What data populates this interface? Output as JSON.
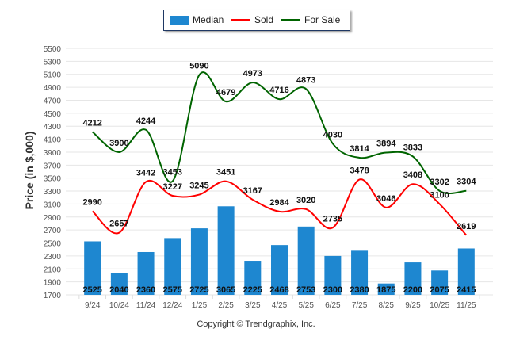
{
  "chart_data": {
    "type": "bar",
    "title": "",
    "xlabel": "",
    "ylabel": "Price (in $,000)",
    "ylim": [
      1700,
      5500
    ],
    "ytick_step": 200,
    "grid": true,
    "legend_position": "top-center",
    "categories": [
      "9/24",
      "10/24",
      "11/24",
      "12/24",
      "1/25",
      "2/25",
      "3/25",
      "4/25",
      "5/25",
      "6/25",
      "7/25",
      "8/25",
      "9/25",
      "10/25",
      "11/25"
    ],
    "series": [
      {
        "name": "Median",
        "type": "bar",
        "color": "#1e87d0",
        "values": [
          2525,
          2040,
          2360,
          2575,
          2725,
          3065,
          2225,
          2468,
          2753,
          2300,
          2380,
          1875,
          2200,
          2075,
          2415
        ]
      },
      {
        "name": "Sold",
        "type": "line",
        "color": "#ff0000",
        "values": [
          2990,
          2657,
          3442,
          3227,
          3245,
          3451,
          3167,
          2984,
          3020,
          2735,
          3478,
          3046,
          3408,
          3100,
          2619
        ]
      },
      {
        "name": "For Sale",
        "type": "line",
        "color": "#006400",
        "values": [
          4212,
          3900,
          4244,
          3453,
          5090,
          4679,
          4973,
          4716,
          4873,
          4030,
          3814,
          3894,
          3833,
          3302,
          3304
        ]
      }
    ]
  },
  "legend": {
    "median": "Median",
    "sold": "Sold",
    "for_sale": "For Sale"
  },
  "footer": {
    "copyright": "Copyright © Trendgraphix, Inc."
  }
}
